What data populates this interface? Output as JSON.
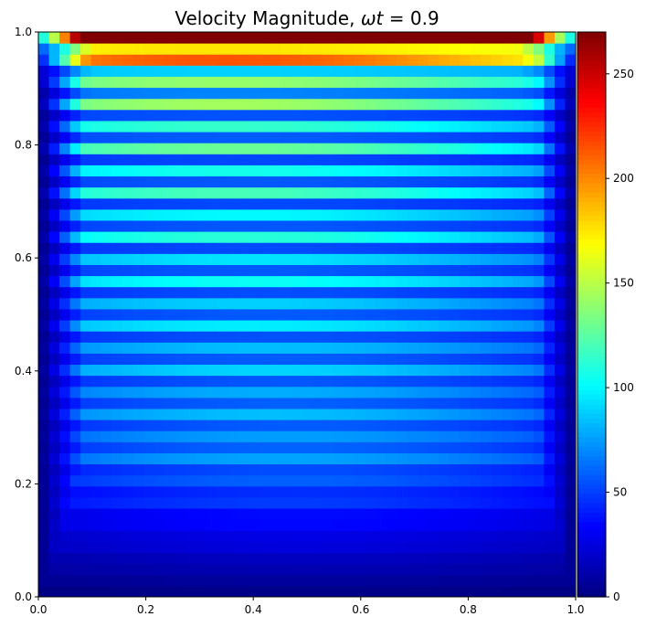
{
  "chart_data": {
    "type": "heatmap",
    "title_prefix": "Velocity Magnitude, ",
    "title_var": "ωt",
    "title_suffix": " = 0.9",
    "xlabel": "",
    "ylabel": "",
    "xlim": [
      0.0,
      1.0
    ],
    "ylim": [
      0.0,
      1.0
    ],
    "x_ticks": [
      {
        "value": 0.0,
        "label": "0.0"
      },
      {
        "value": 0.2,
        "label": "0.2"
      },
      {
        "value": 0.4,
        "label": "0.4"
      },
      {
        "value": 0.6,
        "label": "0.6"
      },
      {
        "value": 0.8,
        "label": "0.8"
      },
      {
        "value": 1.0,
        "label": "1.0"
      }
    ],
    "y_ticks": [
      {
        "value": 0.0,
        "label": "0.0"
      },
      {
        "value": 0.2,
        "label": "0.2"
      },
      {
        "value": 0.4,
        "label": "0.4"
      },
      {
        "value": 0.6,
        "label": "0.6"
      },
      {
        "value": 0.8,
        "label": "0.8"
      },
      {
        "value": 1.0,
        "label": "1.0"
      }
    ],
    "colormap": "jet",
    "colorbar": {
      "min": 0,
      "max": 270,
      "ticks": [
        {
          "value": 0,
          "label": "0"
        },
        {
          "value": 50,
          "label": "50"
        },
        {
          "value": 100,
          "label": "100"
        },
        {
          "value": 150,
          "label": "150"
        },
        {
          "value": 200,
          "label": "200"
        },
        {
          "value": 250,
          "label": "250"
        }
      ]
    },
    "grid": false,
    "legend": "none",
    "grid_resolution": [
      51,
      51
    ],
    "field_description": "lid-driven cavity velocity magnitude: peak ~270 along lid (y=1.0), alternating horizontal bands ~0-150 in interior, near 0 at walls, smooth ~40-70 lower region"
  }
}
